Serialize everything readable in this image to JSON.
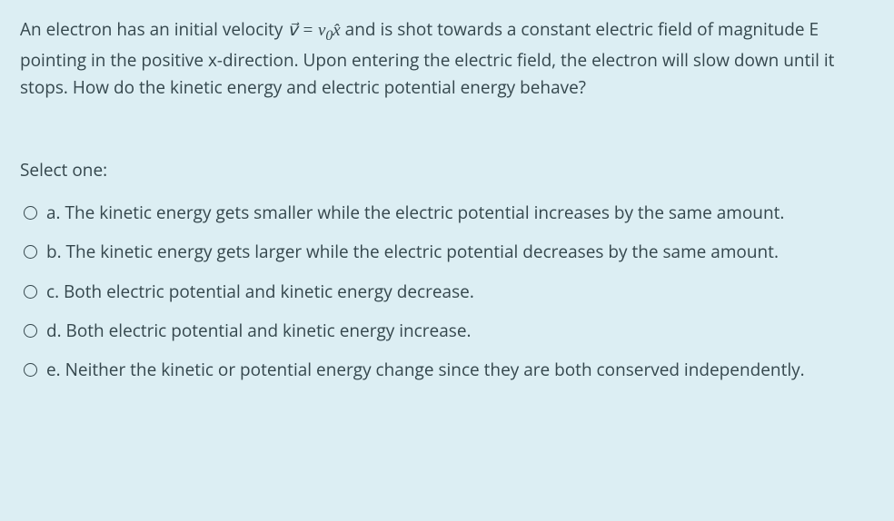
{
  "colors": {
    "background": "#dceef3",
    "text": "#35474d"
  },
  "question": {
    "part1": "An electron has an initial velocity ",
    "formula_html": "<i>v&#8407;</i> = <i>v</i><sub>0</sub><i>x&#770;</i>",
    "part2": " and is shot towards a constant electric field of magnitude E pointing in the positive x-direction. Upon entering the electric field, the electron will slow down until it stops. How do the kinetic energy and electric potential energy behave?"
  },
  "prompt": "Select one:",
  "options": [
    {
      "letter": "a.",
      "text": "The kinetic energy gets smaller while the electric potential increases by the same amount."
    },
    {
      "letter": "b.",
      "text": "The kinetic energy gets larger while the electric potential decreases by the same amount."
    },
    {
      "letter": "c.",
      "text": "Both electric potential and kinetic energy decrease."
    },
    {
      "letter": "d.",
      "text": "Both electric potential and kinetic energy increase."
    },
    {
      "letter": "e.",
      "text": "Neither the kinetic or potential energy change since they are both conserved independently."
    }
  ]
}
